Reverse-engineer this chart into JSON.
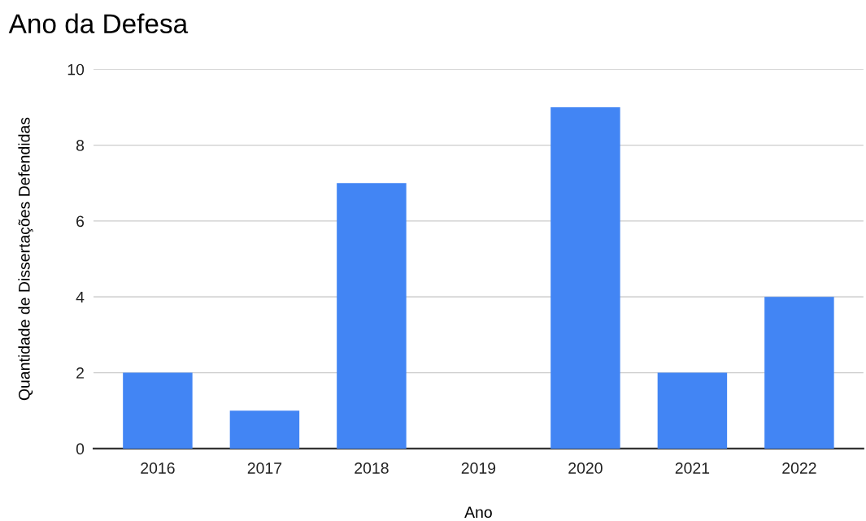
{
  "chart_data": {
    "type": "bar",
    "title": "Ano da Defesa",
    "xlabel": "Ano",
    "ylabel": "Quantidade de Dissertações Defendidas",
    "categories": [
      "2016",
      "2017",
      "2018",
      "2019",
      "2020",
      "2021",
      "2022"
    ],
    "values": [
      2,
      1,
      7,
      0,
      9,
      2,
      4
    ],
    "color": "#4285f4",
    "ylim": [
      0,
      10
    ],
    "yticks": [
      0,
      2,
      4,
      6,
      8,
      10
    ],
    "grid": "y",
    "legend": false
  }
}
